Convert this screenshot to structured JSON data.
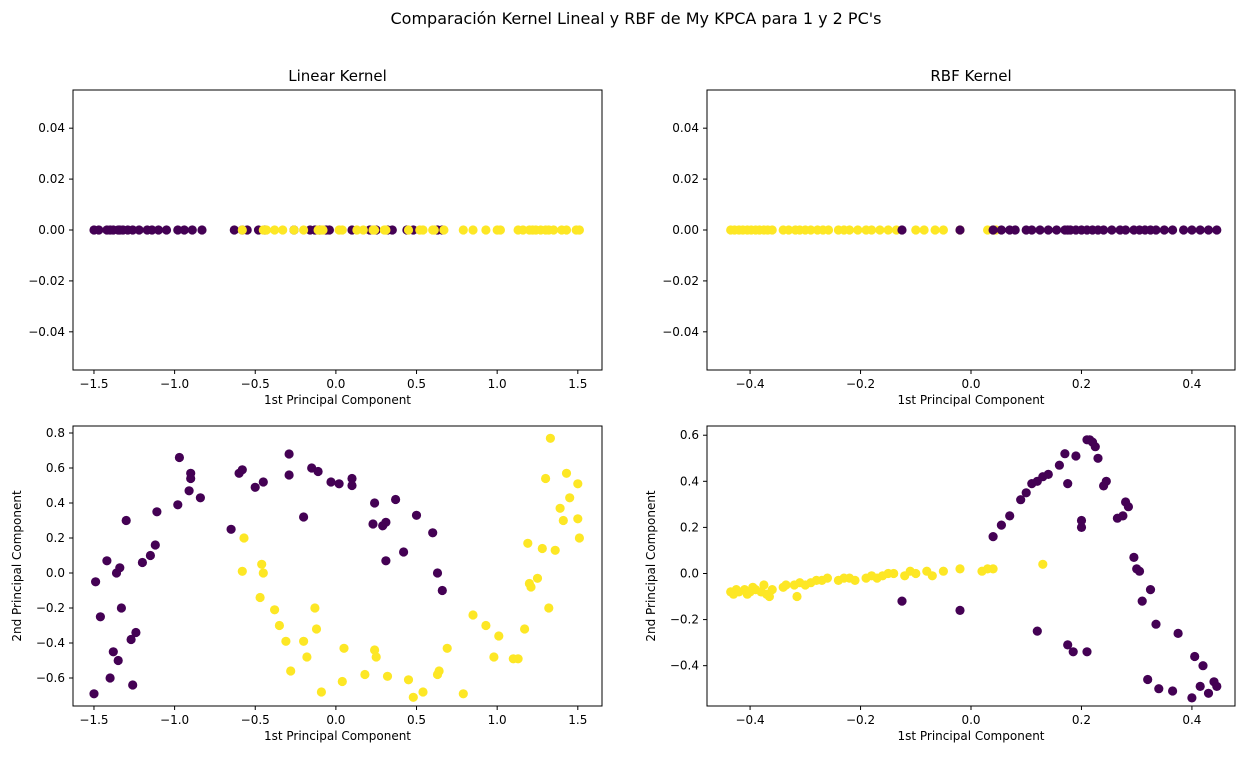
{
  "suptitle": "Comparación Kernel Lineal y RBF de My KPCA para 1 y 2 PC's",
  "colors": {
    "class_0": "#440154",
    "class_1": "#fde725",
    "axes_edge": "#000000",
    "background": "#ffffff"
  },
  "chart_data": [
    {
      "type": "scatter",
      "title": "Linear Kernel",
      "xlabel": "1st Principal Component",
      "ylabel": "",
      "xlim": [
        -1.63,
        1.65
      ],
      "ylim": [
        -0.055,
        0.055
      ],
      "xticks": [
        -1.5,
        -1.0,
        -0.5,
        0.0,
        0.5,
        1.0,
        1.5
      ],
      "xtick_labels": [
        "−1.5",
        "−1.0",
        "−0.5",
        "0.0",
        "0.5",
        "1.0",
        "1.5"
      ],
      "yticks": [
        -0.04,
        -0.02,
        0.0,
        0.02,
        0.04
      ],
      "ytick_labels": [
        "−0.04",
        "−0.02",
        "0.00",
        "0.02",
        "0.04"
      ],
      "grid": false,
      "series": [
        {
          "class": 0,
          "x": [
            -1.5,
            -1.47,
            -1.42,
            -1.4,
            -1.38,
            -1.35,
            -1.34,
            -1.32,
            -1.29,
            -1.26,
            -1.22,
            -1.17,
            -1.14,
            -1.1,
            -1.05,
            -0.98,
            -0.94,
            -0.89,
            -0.83,
            -0.63,
            -0.58,
            -0.55,
            -0.48,
            -0.44,
            -0.26,
            -0.16,
            -0.13,
            -0.1,
            -0.06,
            -0.04,
            0.1,
            0.21,
            0.25,
            0.32,
            0.35,
            0.44,
            0.48,
            0.63,
            0.66
          ],
          "y": [
            0,
            0,
            0,
            0,
            0,
            0,
            0,
            0,
            0,
            0,
            0,
            0,
            0,
            0,
            0,
            0,
            0,
            0,
            0,
            0,
            0,
            0,
            0,
            0,
            0,
            0,
            0,
            0,
            0,
            0,
            0,
            0,
            0,
            0,
            0,
            0,
            0,
            0,
            0
          ]
        },
        {
          "class": 1,
          "x": [
            -0.58,
            -0.45,
            -0.43,
            -0.38,
            -0.33,
            -0.26,
            -0.2,
            -0.11,
            -0.09,
            -0.08,
            0.02,
            0.04,
            0.13,
            0.17,
            0.23,
            0.24,
            0.3,
            0.31,
            0.45,
            0.52,
            0.54,
            0.6,
            0.61,
            0.67,
            0.79,
            0.85,
            0.93,
            1.0,
            1.02,
            1.13,
            1.16,
            1.2,
            1.22,
            1.24,
            1.27,
            1.3,
            1.32,
            1.35,
            1.4,
            1.43,
            1.49,
            1.51
          ],
          "y": [
            0,
            0,
            0,
            0,
            0,
            0,
            0,
            0,
            0,
            0,
            0,
            0,
            0,
            0,
            0,
            0,
            0,
            0,
            0,
            0,
            0,
            0,
            0,
            0,
            0,
            0,
            0,
            0,
            0,
            0,
            0,
            0,
            0,
            0,
            0,
            0,
            0,
            0,
            0,
            0,
            0,
            0
          ]
        }
      ]
    },
    {
      "type": "scatter",
      "title": "RBF Kernel",
      "xlabel": "1st Principal Component",
      "ylabel": "",
      "xlim": [
        -0.478,
        0.478
      ],
      "ylim": [
        -0.055,
        0.055
      ],
      "xticks": [
        -0.4,
        -0.2,
        0.0,
        0.2,
        0.4
      ],
      "xtick_labels": [
        "−0.4",
        "−0.2",
        "0.0",
        "0.2",
        "0.4"
      ],
      "yticks": [
        -0.04,
        -0.02,
        0.0,
        0.02,
        0.04
      ],
      "ytick_labels": [
        "−0.04",
        "−0.02",
        "0.00",
        "0.02",
        "0.04"
      ],
      "grid": false,
      "series": [
        {
          "class": 1,
          "x": [
            -0.435,
            -0.428,
            -0.42,
            -0.413,
            -0.405,
            -0.398,
            -0.39,
            -0.383,
            -0.375,
            -0.368,
            -0.36,
            -0.34,
            -0.33,
            -0.318,
            -0.31,
            -0.3,
            -0.29,
            -0.278,
            -0.268,
            -0.258,
            -0.24,
            -0.23,
            -0.22,
            -0.205,
            -0.19,
            -0.18,
            -0.165,
            -0.15,
            -0.135,
            -0.1,
            -0.085,
            -0.065,
            -0.05,
            -0.02,
            0.03,
            0.045,
            0.04
          ],
          "y": [
            0,
            0,
            0,
            0,
            0,
            0,
            0,
            0,
            0,
            0,
            0,
            0,
            0,
            0,
            0,
            0,
            0,
            0,
            0,
            0,
            0,
            0,
            0,
            0,
            0,
            0,
            0,
            0,
            0,
            0,
            0,
            0,
            0,
            0,
            0,
            0,
            0
          ]
        },
        {
          "class": 0,
          "x": [
            -0.125,
            -0.02,
            0.04,
            0.055,
            0.07,
            0.08,
            0.1,
            0.11,
            0.125,
            0.14,
            0.155,
            0.17,
            0.175,
            0.18,
            0.19,
            0.2,
            0.21,
            0.22,
            0.23,
            0.24,
            0.255,
            0.27,
            0.28,
            0.295,
            0.305,
            0.315,
            0.325,
            0.335,
            0.35,
            0.365,
            0.385,
            0.4,
            0.415,
            0.43,
            0.445
          ],
          "y": [
            0,
            0,
            0,
            0,
            0,
            0,
            0,
            0,
            0,
            0,
            0,
            0,
            0,
            0,
            0,
            0,
            0,
            0,
            0,
            0,
            0,
            0,
            0,
            0,
            0,
            0,
            0,
            0,
            0,
            0,
            0,
            0,
            0,
            0,
            0
          ]
        }
      ]
    },
    {
      "type": "scatter",
      "title": "",
      "xlabel": "1st Principal Component",
      "ylabel": "2nd Principal Component",
      "xlim": [
        -1.63,
        1.65
      ],
      "ylim": [
        -0.76,
        0.84
      ],
      "xticks": [
        -1.5,
        -1.0,
        -0.5,
        0.0,
        0.5,
        1.0,
        1.5
      ],
      "xtick_labels": [
        "−1.5",
        "−1.0",
        "−0.5",
        "0.0",
        "0.5",
        "1.0",
        "1.5"
      ],
      "yticks": [
        -0.6,
        -0.4,
        -0.2,
        0.0,
        0.2,
        0.4,
        0.6,
        0.8
      ],
      "ytick_labels": [
        "−0.6",
        "−0.4",
        "−0.2",
        "0.0",
        "0.2",
        "0.4",
        "0.6",
        "0.8"
      ],
      "grid": false,
      "series": [
        {
          "class": 0,
          "x": [
            -1.5,
            -1.49,
            -1.46,
            -1.42,
            -1.4,
            -1.38,
            -1.36,
            -1.35,
            -1.34,
            -1.33,
            -1.3,
            -1.27,
            -1.26,
            -1.24,
            -1.2,
            -1.15,
            -1.12,
            -1.11,
            -0.98,
            -0.97,
            -0.91,
            -0.9,
            -0.9,
            -0.84,
            -0.65,
            -0.6,
            -0.58,
            -0.5,
            -0.45,
            -0.29,
            -0.29,
            -0.2,
            -0.15,
            -0.11,
            -0.03,
            0.02,
            0.1,
            0.1,
            0.23,
            0.24,
            0.29,
            0.31,
            0.31,
            0.37,
            0.42,
            0.5,
            0.6,
            0.63,
            0.66
          ],
          "y": [
            -0.69,
            -0.05,
            -0.25,
            0.07,
            -0.6,
            -0.45,
            0.0,
            -0.5,
            0.03,
            -0.2,
            0.3,
            -0.38,
            -0.64,
            -0.34,
            0.06,
            0.1,
            0.16,
            0.35,
            0.39,
            0.66,
            0.47,
            0.57,
            0.54,
            0.43,
            0.25,
            0.57,
            0.59,
            0.49,
            0.52,
            0.68,
            0.56,
            0.32,
            0.6,
            0.58,
            0.52,
            0.51,
            0.54,
            0.5,
            0.28,
            0.4,
            0.27,
            0.29,
            0.07,
            0.42,
            0.12,
            0.33,
            0.23,
            0.0,
            -0.1
          ]
        },
        {
          "class": 1,
          "x": [
            -0.58,
            -0.57,
            -0.47,
            -0.46,
            -0.45,
            -0.38,
            -0.35,
            -0.31,
            -0.28,
            -0.2,
            -0.18,
            -0.13,
            -0.12,
            -0.09,
            0.04,
            0.05,
            0.18,
            0.24,
            0.25,
            0.32,
            0.45,
            0.48,
            0.54,
            0.63,
            0.64,
            0.69,
            0.79,
            0.85,
            0.93,
            0.98,
            1.01,
            1.1,
            1.13,
            1.17,
            1.19,
            1.2,
            1.21,
            1.25,
            1.28,
            1.3,
            1.32,
            1.33,
            1.36,
            1.39,
            1.41,
            1.43,
            1.45,
            1.5,
            1.5,
            1.51
          ],
          "y": [
            0.01,
            0.2,
            -0.14,
            0.05,
            0.0,
            -0.21,
            -0.3,
            -0.39,
            -0.56,
            -0.39,
            -0.48,
            -0.2,
            -0.32,
            -0.68,
            -0.62,
            -0.43,
            -0.58,
            -0.44,
            -0.48,
            -0.59,
            -0.61,
            -0.71,
            -0.68,
            -0.58,
            -0.56,
            -0.43,
            -0.69,
            -0.24,
            -0.3,
            -0.48,
            -0.36,
            -0.49,
            -0.49,
            -0.32,
            0.17,
            -0.06,
            -0.08,
            -0.03,
            0.14,
            0.54,
            -0.2,
            0.77,
            0.13,
            0.37,
            0.3,
            0.57,
            0.43,
            0.51,
            0.31,
            0.2
          ]
        }
      ]
    },
    {
      "type": "scatter",
      "title": "",
      "xlabel": "1st Principal Component",
      "ylabel": "2nd Principal Component",
      "xlim": [
        -0.478,
        0.478
      ],
      "ylim": [
        -0.575,
        0.64
      ],
      "xticks": [
        -0.4,
        -0.2,
        0.0,
        0.2,
        0.4
      ],
      "xtick_labels": [
        "−0.4",
        "−0.2",
        "0.0",
        "0.2",
        "0.4"
      ],
      "yticks": [
        -0.4,
        -0.2,
        0.0,
        0.2,
        0.4,
        0.6
      ],
      "ytick_labels": [
        "−0.4",
        "−0.2",
        "0.0",
        "0.2",
        "0.4",
        "0.6"
      ],
      "grid": false,
      "series": [
        {
          "class": 1,
          "x": [
            -0.435,
            -0.43,
            -0.425,
            -0.42,
            -0.41,
            -0.405,
            -0.4,
            -0.395,
            -0.39,
            -0.38,
            -0.375,
            -0.37,
            -0.365,
            -0.36,
            -0.34,
            -0.335,
            -0.32,
            -0.315,
            -0.31,
            -0.3,
            -0.29,
            -0.28,
            -0.27,
            -0.26,
            -0.24,
            -0.23,
            -0.22,
            -0.21,
            -0.19,
            -0.18,
            -0.17,
            -0.16,
            -0.15,
            -0.14,
            -0.12,
            -0.11,
            -0.1,
            -0.08,
            -0.07,
            -0.05,
            -0.02,
            0.02,
            0.03,
            0.04,
            0.13
          ],
          "y": [
            -0.08,
            -0.09,
            -0.07,
            -0.08,
            -0.07,
            -0.09,
            -0.08,
            -0.06,
            -0.07,
            -0.08,
            -0.05,
            -0.09,
            -0.1,
            -0.07,
            -0.06,
            -0.05,
            -0.05,
            -0.1,
            -0.04,
            -0.05,
            -0.04,
            -0.03,
            -0.03,
            -0.02,
            -0.03,
            -0.02,
            -0.02,
            -0.03,
            -0.02,
            -0.01,
            -0.02,
            -0.01,
            0.0,
            0.0,
            -0.01,
            0.01,
            0.0,
            0.01,
            -0.01,
            0.01,
            0.02,
            0.01,
            0.02,
            0.02,
            0.04
          ]
        },
        {
          "class": 0,
          "x": [
            -0.125,
            -0.02,
            0.04,
            0.055,
            0.07,
            0.09,
            0.1,
            0.11,
            0.12,
            0.13,
            0.14,
            0.16,
            0.17,
            0.175,
            0.19,
            0.2,
            0.2,
            0.21,
            0.215,
            0.22,
            0.225,
            0.23,
            0.24,
            0.245,
            0.265,
            0.275,
            0.28,
            0.285,
            0.295,
            0.3,
            0.305,
            0.31,
            0.32,
            0.325,
            0.335,
            0.34,
            0.365,
            0.375,
            0.4,
            0.405,
            0.415,
            0.42,
            0.43,
            0.44,
            0.445,
            0.12,
            0.175,
            0.185,
            0.21
          ],
          "y": [
            -0.12,
            -0.16,
            0.16,
            0.21,
            0.25,
            0.32,
            0.35,
            0.39,
            0.4,
            0.42,
            0.43,
            0.47,
            0.52,
            0.39,
            0.51,
            0.2,
            0.23,
            0.58,
            0.58,
            0.57,
            0.55,
            0.5,
            0.38,
            0.4,
            0.24,
            0.25,
            0.31,
            0.29,
            0.07,
            0.02,
            0.01,
            -0.12,
            -0.46,
            -0.07,
            -0.22,
            -0.5,
            -0.51,
            -0.26,
            -0.54,
            -0.36,
            -0.49,
            -0.4,
            -0.52,
            -0.47,
            -0.49,
            -0.25,
            -0.31,
            -0.34,
            -0.34
          ]
        }
      ]
    }
  ]
}
